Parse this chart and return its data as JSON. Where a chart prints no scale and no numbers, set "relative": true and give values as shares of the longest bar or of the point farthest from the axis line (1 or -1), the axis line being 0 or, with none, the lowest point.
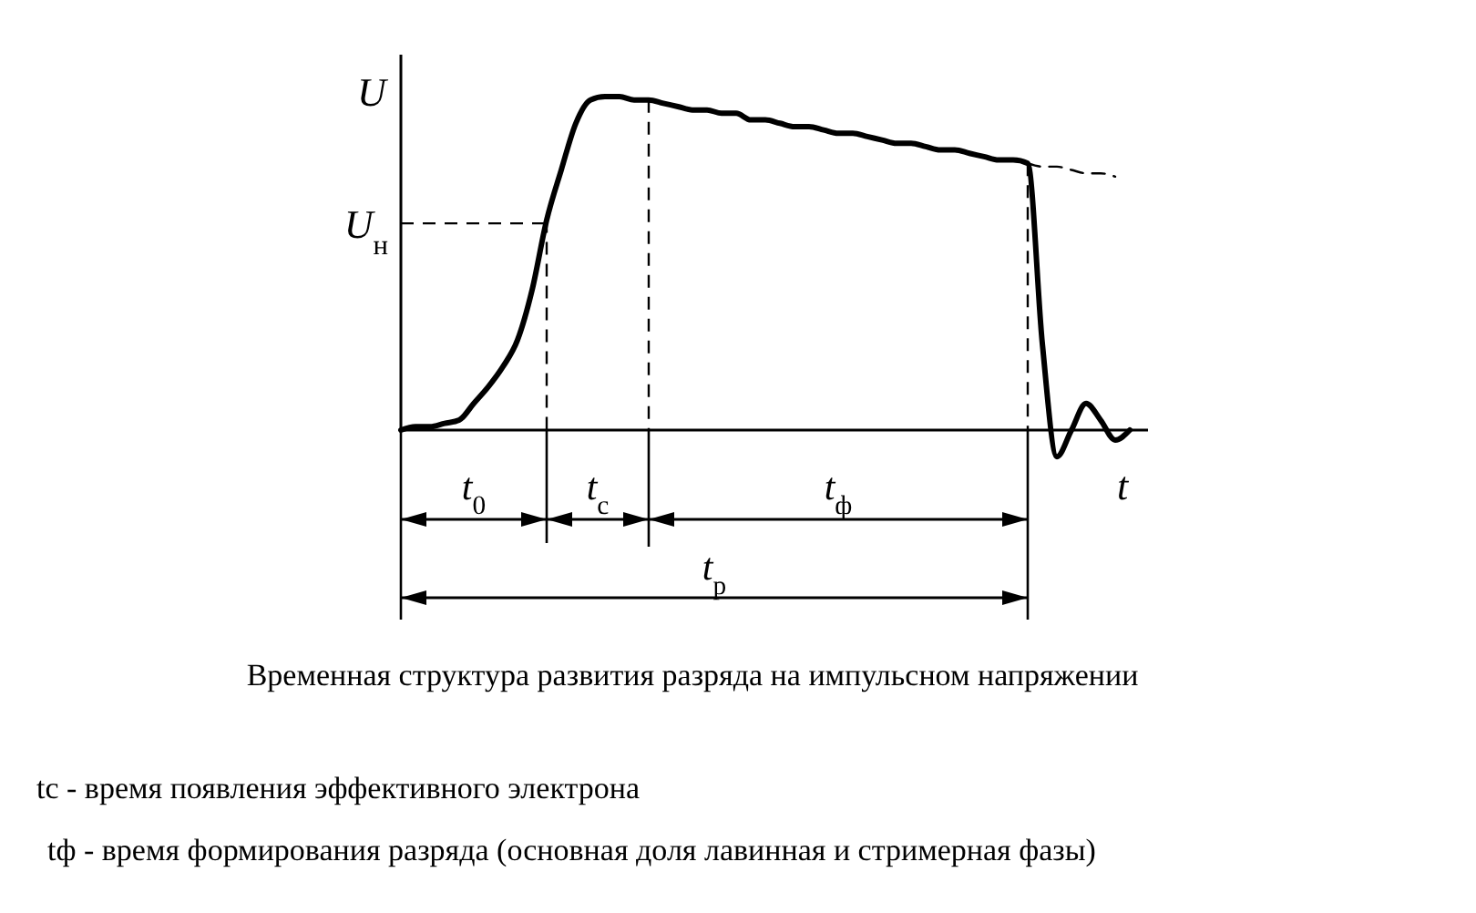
{
  "chart_data": {
    "type": "line",
    "relative": true,
    "title": "Временная структура развития разряда на импульсном напряжении",
    "xlabel": "t",
    "ylabel": "U",
    "categories": [
      null,
      null,
      null,
      null,
      null,
      null,
      null,
      null,
      null,
      null,
      null,
      null,
      null,
      null,
      null,
      null,
      null,
      null,
      null,
      null,
      null,
      null,
      null,
      null,
      null,
      null,
      null,
      null,
      null,
      null,
      null,
      null,
      null,
      null,
      null,
      null,
      null,
      null,
      null,
      null,
      null,
      null,
      null,
      null,
      null,
      null,
      null,
      null,
      null,
      null,
      null
    ],
    "series": [
      {
        "color": "#000000",
        "values": [
          0,
          0.01,
          0.01,
          0.02,
          0.03,
          0.08,
          0.13,
          0.19,
          0.27,
          0.42,
          0.63,
          0.78,
          0.92,
          0.99,
          1,
          1,
          0.99,
          0.99,
          0.98,
          0.97,
          0.96,
          0.96,
          0.95,
          0.95,
          0.93,
          0.93,
          0.92,
          0.91,
          0.91,
          0.9,
          0.89,
          0.89,
          0.88,
          0.87,
          0.86,
          0.86,
          0.85,
          0.84,
          0.84,
          0.83,
          0.82,
          0.81,
          0.81,
          0.8,
          0.26,
          -0.08,
          0,
          0.08,
          0.03,
          -0.03,
          0
        ]
      },
      {
        "color": "#000000",
        "line_style": "dashed",
        "values": [
          null,
          null,
          null,
          null,
          null,
          null,
          null,
          null,
          null,
          null,
          null,
          null,
          null,
          null,
          null,
          null,
          null,
          null,
          null,
          null,
          null,
          null,
          null,
          null,
          null,
          null,
          null,
          null,
          null,
          null,
          null,
          null,
          null,
          null,
          null,
          null,
          null,
          null,
          null,
          null,
          null,
          null,
          null,
          0.8,
          0.79,
          0.79,
          0.78,
          0.77,
          0.77,
          0.76,
          null
        ]
      }
    ],
    "ref_lines": [
      {
        "axis": "y",
        "value": 0.62,
        "label": "U$_{н}$",
        "line_style": "dashed",
        "color": "#000000"
      }
    ],
    "annotations": [
      "t$_{0}$",
      "t$_{с}$",
      "t$_{ф}$",
      "t$_{р}$",
      "tс  -  время появления эффективного электрона",
      "tф  - время формирования разряда (основная доля лавинная и стримерная фазы)"
    ],
    "line_style": "solid"
  }
}
